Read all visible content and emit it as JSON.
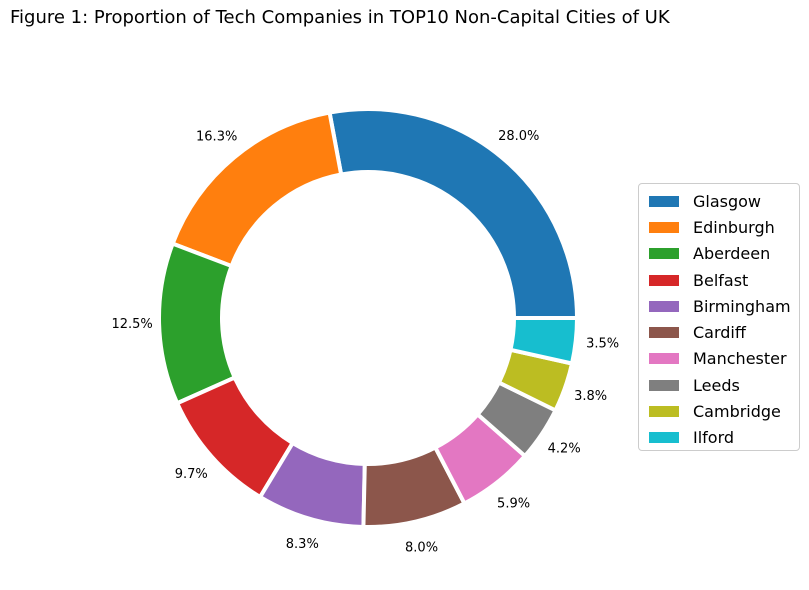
{
  "title": "Figure 1: Proportion of Tech Companies in TOP10 Non-Capital Cities of UK",
  "chart_data": {
    "type": "pie",
    "variant": "donut",
    "title": "Figure 1: Proportion of Tech Companies in TOP10 Non-Capital Cities of UK",
    "categories": [
      "Glasgow",
      "Edinburgh",
      "Aberdeen",
      "Belfast",
      "Birmingham",
      "Cardiff",
      "Manchester",
      "Leeds",
      "Cambridge",
      "Ilford"
    ],
    "values": [
      28.0,
      16.3,
      12.5,
      9.7,
      8.3,
      8.0,
      5.9,
      4.2,
      3.8,
      3.5
    ],
    "labels": [
      "28.0%",
      "16.3%",
      "12.5%",
      "9.7%",
      "8.3%",
      "8.0%",
      "5.9%",
      "4.2%",
      "3.8%",
      "3.5%"
    ],
    "colors": [
      "#1f77b4",
      "#ff7f0e",
      "#2ca02c",
      "#d62728",
      "#9467bd",
      "#8c564b",
      "#e377c2",
      "#7f7f7f",
      "#bcbd22",
      "#17becf"
    ],
    "start_angle_deg": 0,
    "direction": "counterclockwise",
    "legend_position": "right"
  }
}
